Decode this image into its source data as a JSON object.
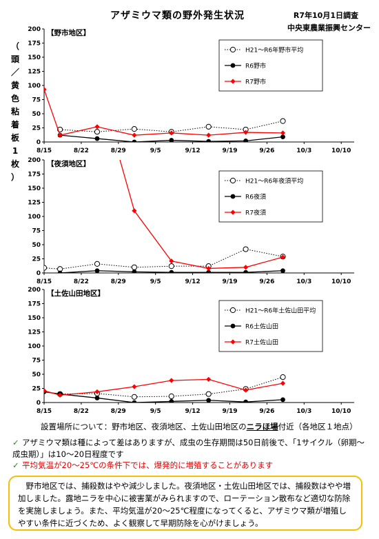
{
  "header": {
    "title": "アザミウマ類の野外発生状況",
    "survey_date": "R7年10月1日調査",
    "org": "中央東農業振興センター",
    "ylabel": "（頭／黄色粘着板1枚）"
  },
  "chart_data": [
    {
      "type": "line",
      "title": "【野市地区】",
      "x_ticks": [
        "8/15",
        "8/22",
        "8/29",
        "9/5",
        "9/12",
        "9/19",
        "9/26",
        "10/3",
        "10/10"
      ],
      "ylim": [
        0,
        200
      ],
      "y_ticks": [
        0,
        25,
        50,
        75,
        100,
        125,
        150,
        175,
        200
      ],
      "legend_position": "top-right",
      "series": [
        {
          "name": "H21～R6年野市平均",
          "style": "avg",
          "color": "#000000",
          "x": [
            "8/18",
            "8/25",
            "9/1",
            "9/8",
            "9/15",
            "9/22",
            "9/29"
          ],
          "values": [
            22,
            18,
            23,
            18,
            27,
            22,
            37
          ]
        },
        {
          "name": "R6野市",
          "style": "prev",
          "color": "#000000",
          "x": [
            "8/18",
            "8/25",
            "9/1",
            "9/8",
            "9/15",
            "9/22",
            "9/29"
          ],
          "values": [
            12,
            6,
            0,
            3,
            1,
            2,
            9
          ]
        },
        {
          "name": "R7野市",
          "style": "cur",
          "color": "#ff0000",
          "x": [
            "8/15",
            "8/18",
            "8/25",
            "9/1",
            "9/8",
            "9/15",
            "9/22",
            "9/29"
          ],
          "values": [
            93,
            12,
            27,
            12,
            16,
            12,
            17,
            16
          ]
        }
      ]
    },
    {
      "type": "line",
      "title": "【夜須地区】",
      "x_ticks": [
        "8/15",
        "8/22",
        "8/29",
        "9/5",
        "9/12",
        "9/19",
        "9/26",
        "10/3",
        "10/10"
      ],
      "ylim": [
        0,
        200
      ],
      "y_ticks": [
        0,
        25,
        50,
        75,
        100,
        125,
        150,
        175,
        200
      ],
      "legend_position": "top-right",
      "series": [
        {
          "name": "H21～R6年夜須平均",
          "style": "avg",
          "color": "#000000",
          "x": [
            "8/15",
            "8/18",
            "8/25",
            "9/1",
            "9/8",
            "9/15",
            "9/22",
            "9/29"
          ],
          "values": [
            9,
            7,
            16,
            10,
            12,
            12,
            42,
            29
          ]
        },
        {
          "name": "R6夜須",
          "style": "prev",
          "color": "#000000",
          "x": [
            "8/18",
            "8/25",
            "9/1",
            "9/8",
            "9/15",
            "9/22",
            "9/29"
          ],
          "values": [
            0,
            4,
            2,
            1,
            1,
            1,
            4
          ]
        },
        {
          "name": "R7夜須",
          "style": "cur",
          "color": "#ff0000",
          "x": [
            "8/29",
            "9/1",
            "9/8",
            "9/15",
            "9/22",
            "9/29"
          ],
          "values": [
            210,
            110,
            21,
            8,
            10,
            28
          ]
        }
      ]
    },
    {
      "type": "line",
      "title": "【土佐山田地区】",
      "x_ticks": [
        "8/15",
        "8/22",
        "8/29",
        "9/5",
        "9/12",
        "9/19",
        "9/26",
        "10/3",
        "10/10"
      ],
      "ylim": [
        0,
        200
      ],
      "y_ticks": [
        0,
        25,
        50,
        75,
        100,
        125,
        150,
        175,
        200
      ],
      "legend_position": "top-right",
      "series": [
        {
          "name": "H21～R6年土佐山田平均",
          "style": "avg",
          "color": "#000000",
          "x": [
            "8/18",
            "8/25",
            "9/1",
            "9/8",
            "9/15",
            "9/22",
            "9/29"
          ],
          "values": [
            15,
            16,
            10,
            11,
            15,
            24,
            45
          ]
        },
        {
          "name": "R6土佐山田",
          "style": "prev",
          "color": "#000000",
          "x": [
            "8/15",
            "8/18",
            "8/25",
            "9/1",
            "9/8",
            "9/15",
            "9/22",
            "9/29"
          ],
          "values": [
            19,
            15,
            8,
            0,
            2,
            4,
            1,
            5
          ]
        },
        {
          "name": "R7土佐山田",
          "style": "cur",
          "color": "#ff0000",
          "x": [
            "8/15",
            "8/18",
            "8/25",
            "9/1",
            "9/8",
            "9/15",
            "9/22",
            "9/29"
          ],
          "values": [
            21,
            13,
            19,
            28,
            39,
            41,
            22,
            34
          ]
        }
      ]
    }
  ],
  "notes": {
    "location_prefix": "設置場所について：野市地区、夜須地区、土佐山田地区の",
    "location_crop": "ニラほ場",
    "location_suffix": "付近（各地区１地点）",
    "note1_mark": "✓",
    "note1": "アザミウマ類は種によって差はありますが、成虫の生存期間は50日前後で、「1サイクル（卵期～成虫期）」は10～20日程度です",
    "note2_mark": "✓",
    "note2": "平均気温が20～25℃の条件下では、爆発的に増殖することがあります",
    "summary": "野市地区では、捕殺数はやや減少しました。夜須地区・土佐山田地区では、捕殺数はやや増加しました。露地ニラを中心に被害業がみられますので、ローテーション散布など適切な防除を実施しましょう。また、平均気温が20～25℃程度になってくると、アザミウマ類が増殖しやすい条件に近づくため、よく観察して早期防除を心がけましょう。"
  }
}
